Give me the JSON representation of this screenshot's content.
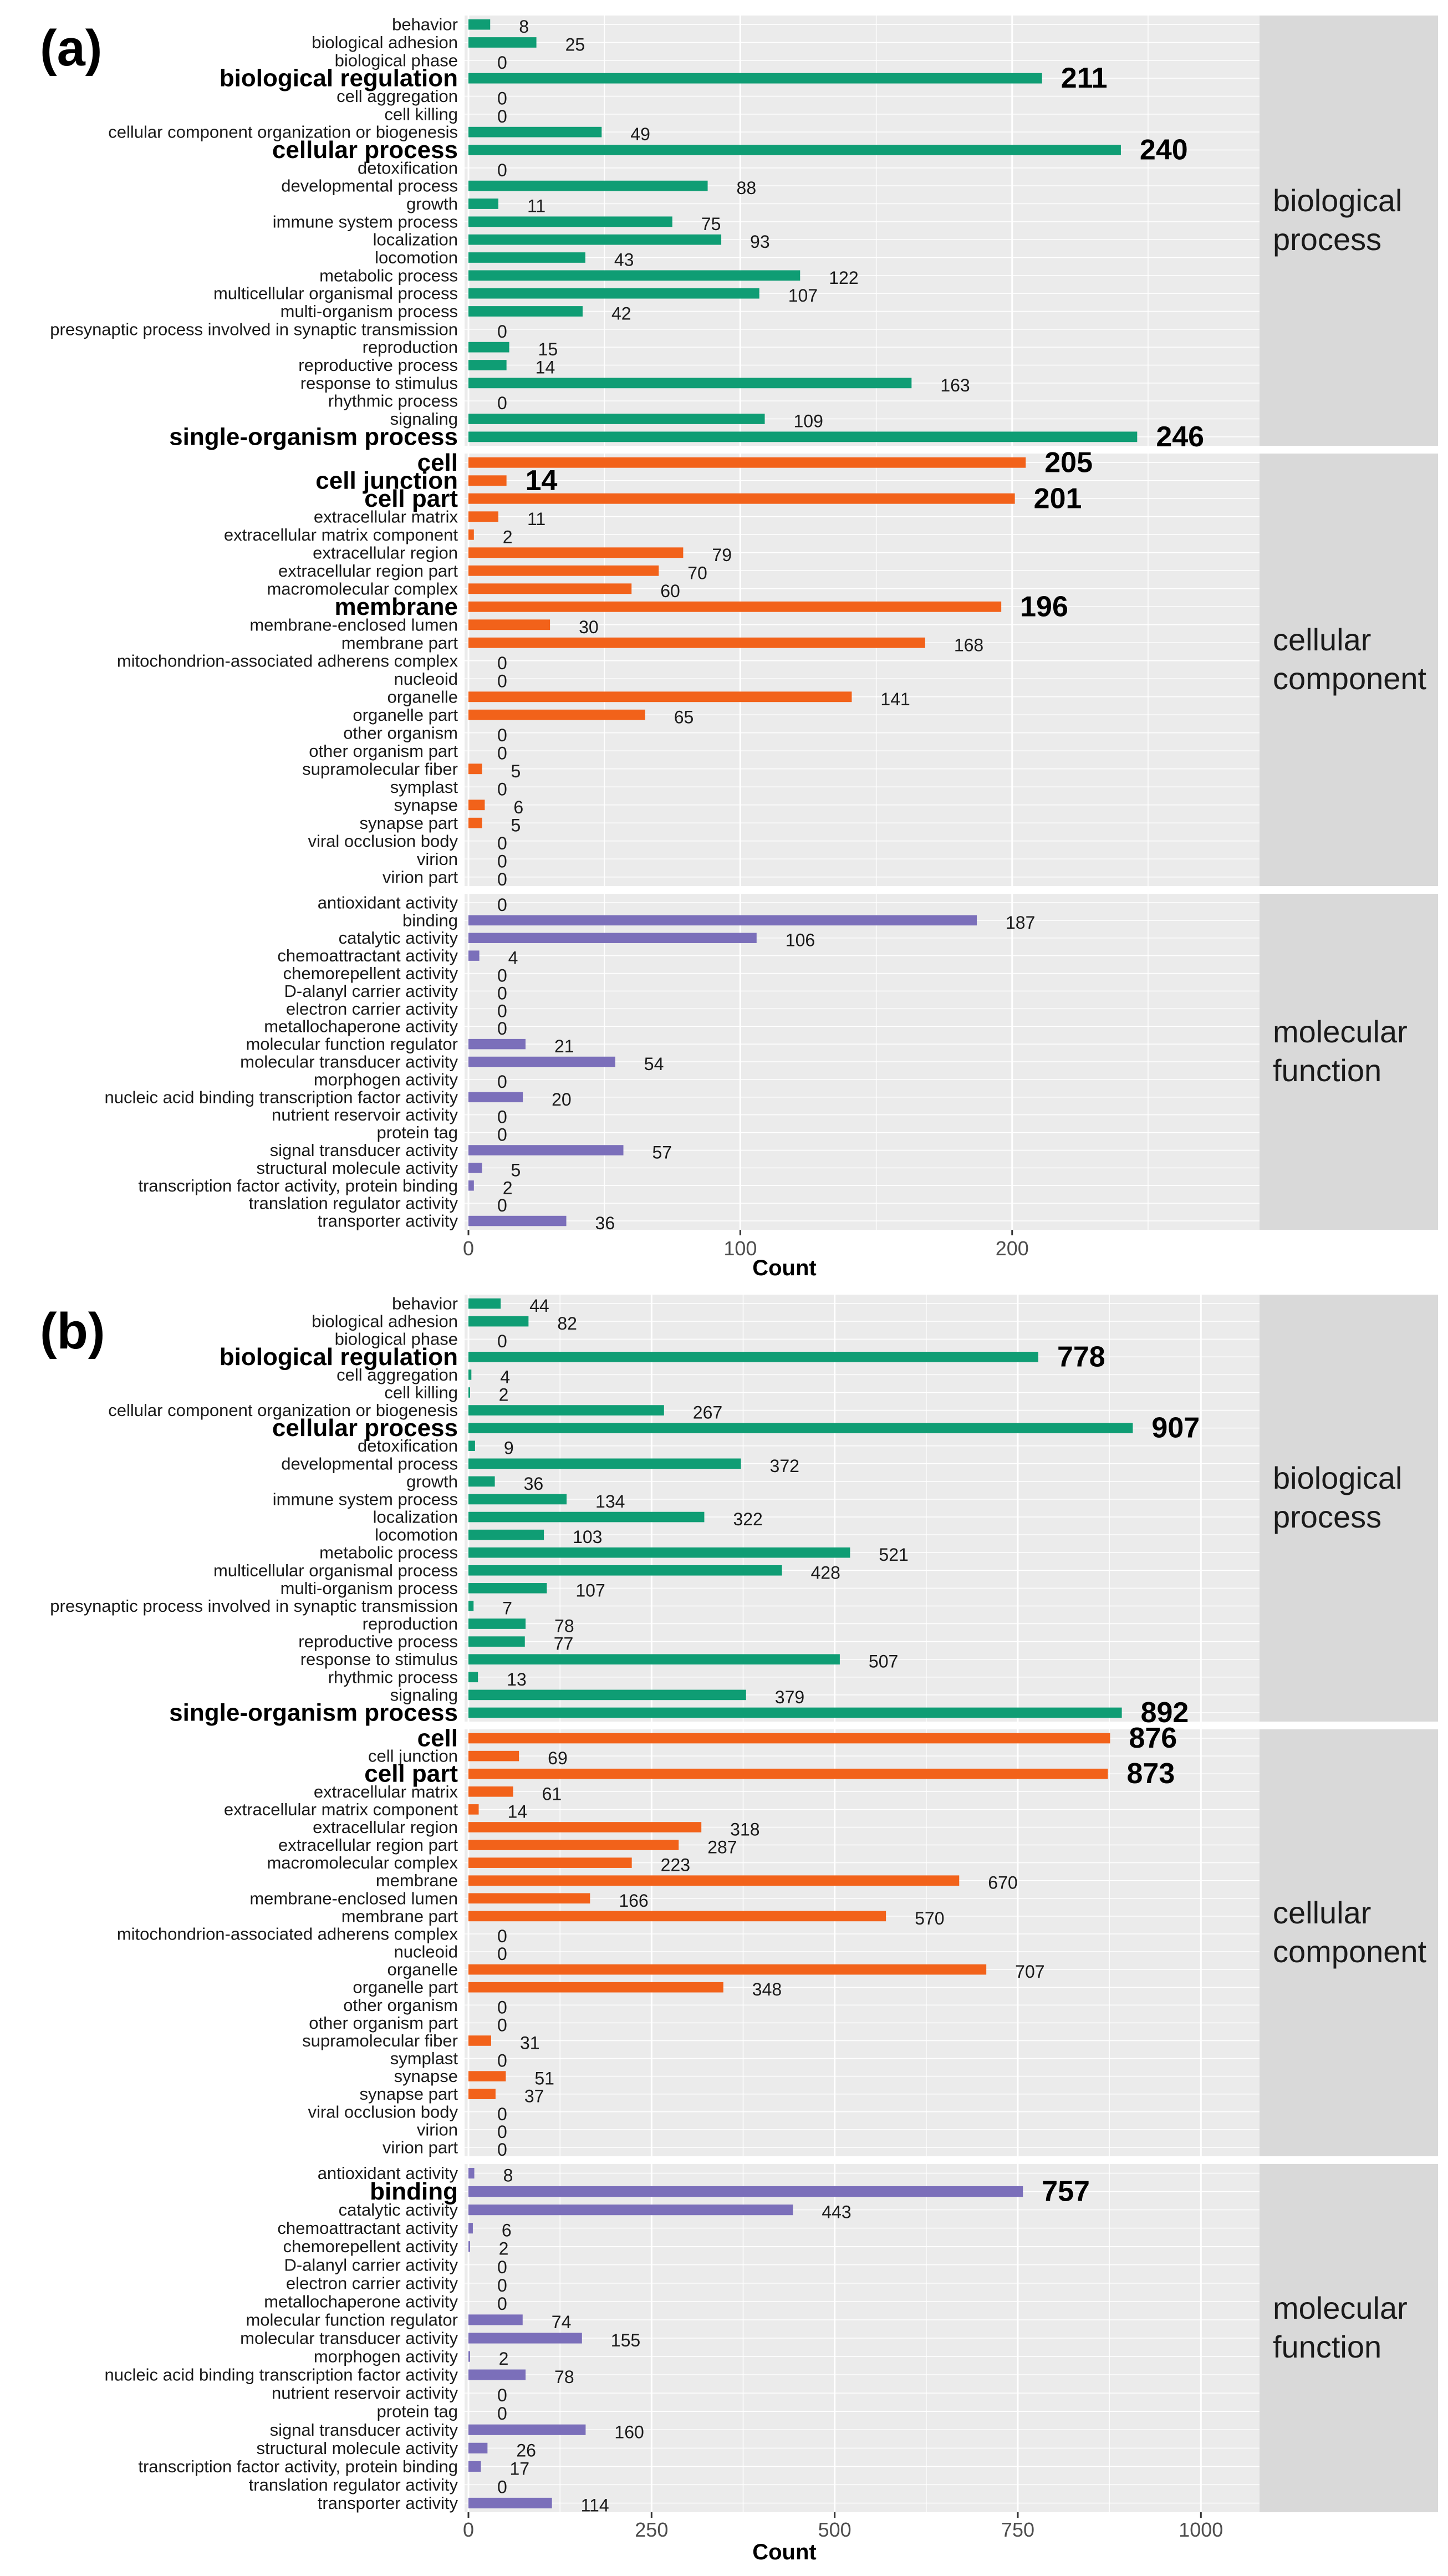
{
  "chart_data": [
    {
      "type": "bar",
      "panel_tag": "(a)",
      "orientation": "horizontal",
      "xlabel": "Count",
      "xlim": [
        0,
        291
      ],
      "xticks": [
        0,
        100,
        200
      ],
      "colors": {
        "biological process": "#0f9d74",
        "cellular component": "#f2621a",
        "molecular function": "#7b6fba"
      },
      "facets": [
        {
          "name": "biological process",
          "label_lines": [
            "biological",
            "process"
          ],
          "items": [
            {
              "label": "behavior",
              "value": 8
            },
            {
              "label": "biological adhesion",
              "value": 25
            },
            {
              "label": "biological phase",
              "value": 0
            },
            {
              "label": "biological regulation",
              "value": 211,
              "bold": true
            },
            {
              "label": "cell aggregation",
              "value": 0
            },
            {
              "label": "cell killing",
              "value": 0
            },
            {
              "label": "cellular component organization or biogenesis",
              "value": 49
            },
            {
              "label": "cellular process",
              "value": 240,
              "bold": true
            },
            {
              "label": "detoxification",
              "value": 0
            },
            {
              "label": "developmental process",
              "value": 88
            },
            {
              "label": "growth",
              "value": 11
            },
            {
              "label": "immune system process",
              "value": 75
            },
            {
              "label": "localization",
              "value": 93
            },
            {
              "label": "locomotion",
              "value": 43
            },
            {
              "label": "metabolic process",
              "value": 122
            },
            {
              "label": "multicellular organismal process",
              "value": 107
            },
            {
              "label": "multi-organism process",
              "value": 42
            },
            {
              "label": "presynaptic process involved in synaptic transmission",
              "value": 0
            },
            {
              "label": "reproduction",
              "value": 15
            },
            {
              "label": "reproductive process",
              "value": 14
            },
            {
              "label": "response to stimulus",
              "value": 163
            },
            {
              "label": "rhythmic process",
              "value": 0
            },
            {
              "label": "signaling",
              "value": 109
            },
            {
              "label": "single-organism process",
              "value": 246,
              "bold": true
            }
          ]
        },
        {
          "name": "cellular component",
          "label_lines": [
            "cellular",
            "component"
          ],
          "items": [
            {
              "label": "cell",
              "value": 205,
              "bold": true
            },
            {
              "label": "cell junction",
              "value": 14,
              "bold": true
            },
            {
              "label": "cell part",
              "value": 201,
              "bold": true
            },
            {
              "label": "extracellular matrix",
              "value": 11
            },
            {
              "label": "extracellular matrix component",
              "value": 2
            },
            {
              "label": "extracellular region",
              "value": 79
            },
            {
              "label": "extracellular region part",
              "value": 70
            },
            {
              "label": "macromolecular complex",
              "value": 60
            },
            {
              "label": "membrane",
              "value": 196,
              "bold": true
            },
            {
              "label": "membrane-enclosed lumen",
              "value": 30
            },
            {
              "label": "membrane part",
              "value": 168
            },
            {
              "label": "mitochondrion-associated adherens complex",
              "value": 0
            },
            {
              "label": "nucleoid",
              "value": 0
            },
            {
              "label": "organelle",
              "value": 141
            },
            {
              "label": "organelle part",
              "value": 65
            },
            {
              "label": "other organism",
              "value": 0
            },
            {
              "label": "other organism part",
              "value": 0
            },
            {
              "label": "supramolecular fiber",
              "value": 5
            },
            {
              "label": "symplast",
              "value": 0
            },
            {
              "label": "synapse",
              "value": 6
            },
            {
              "label": "synapse part",
              "value": 5
            },
            {
              "label": "viral occlusion body",
              "value": 0
            },
            {
              "label": "virion",
              "value": 0
            },
            {
              "label": "virion part",
              "value": 0
            }
          ]
        },
        {
          "name": "molecular function",
          "label_lines": [
            "molecular",
            "function"
          ],
          "items": [
            {
              "label": "antioxidant activity",
              "value": 0
            },
            {
              "label": "binding",
              "value": 187
            },
            {
              "label": "catalytic activity",
              "value": 106
            },
            {
              "label": "chemoattractant activity",
              "value": 4
            },
            {
              "label": "chemorepellent activity",
              "value": 0
            },
            {
              "label": "D-alanyl carrier activity",
              "value": 0
            },
            {
              "label": "electron carrier activity",
              "value": 0
            },
            {
              "label": "metallochaperone activity",
              "value": 0
            },
            {
              "label": "molecular function regulator",
              "value": 21
            },
            {
              "label": "molecular transducer activity",
              "value": 54
            },
            {
              "label": "morphogen activity",
              "value": 0
            },
            {
              "label": "nucleic acid binding transcription factor activity",
              "value": 20
            },
            {
              "label": "nutrient reservoir activity",
              "value": 0
            },
            {
              "label": "protein tag",
              "value": 0
            },
            {
              "label": "signal transducer activity",
              "value": 57
            },
            {
              "label": "structural molecule activity",
              "value": 5
            },
            {
              "label": "transcription factor activity, protein binding",
              "value": 2
            },
            {
              "label": "translation regulator activity",
              "value": 0
            },
            {
              "label": "transporter activity",
              "value": 36
            }
          ]
        }
      ]
    },
    {
      "type": "bar",
      "panel_tag": "(b)",
      "orientation": "horizontal",
      "xlabel": "Count",
      "xlim": [
        0,
        1080
      ],
      "xticks": [
        0,
        250,
        500,
        750,
        1000
      ],
      "colors": {
        "biological process": "#0f9d74",
        "cellular component": "#f2621a",
        "molecular function": "#7b6fba"
      },
      "facets": [
        {
          "name": "biological process",
          "label_lines": [
            "biological",
            "process"
          ],
          "items": [
            {
              "label": "behavior",
              "value": 44
            },
            {
              "label": "biological adhesion",
              "value": 82
            },
            {
              "label": "biological phase",
              "value": 0
            },
            {
              "label": "biological regulation",
              "value": 778,
              "bold": true
            },
            {
              "label": "cell aggregation",
              "value": 4
            },
            {
              "label": "cell killing",
              "value": 2
            },
            {
              "label": "cellular component organization or biogenesis",
              "value": 267
            },
            {
              "label": "cellular process",
              "value": 907,
              "bold": true
            },
            {
              "label": "detoxification",
              "value": 9
            },
            {
              "label": "developmental process",
              "value": 372
            },
            {
              "label": "growth",
              "value": 36
            },
            {
              "label": "immune system process",
              "value": 134
            },
            {
              "label": "localization",
              "value": 322
            },
            {
              "label": "locomotion",
              "value": 103
            },
            {
              "label": "metabolic process",
              "value": 521
            },
            {
              "label": "multicellular organismal process",
              "value": 428
            },
            {
              "label": "multi-organism process",
              "value": 107
            },
            {
              "label": "presynaptic process involved in synaptic transmission",
              "value": 7
            },
            {
              "label": "reproduction",
              "value": 78
            },
            {
              "label": "reproductive process",
              "value": 77
            },
            {
              "label": "response to stimulus",
              "value": 507
            },
            {
              "label": "rhythmic process",
              "value": 13
            },
            {
              "label": "signaling",
              "value": 379
            },
            {
              "label": "single-organism process",
              "value": 892,
              "bold": true
            }
          ]
        },
        {
          "name": "cellular component",
          "label_lines": [
            "cellular",
            "component"
          ],
          "items": [
            {
              "label": "cell",
              "value": 876,
              "bold": true
            },
            {
              "label": "cell junction",
              "value": 69
            },
            {
              "label": "cell part",
              "value": 873,
              "bold": true
            },
            {
              "label": "extracellular matrix",
              "value": 61
            },
            {
              "label": "extracellular matrix component",
              "value": 14
            },
            {
              "label": "extracellular region",
              "value": 318
            },
            {
              "label": "extracellular region part",
              "value": 287
            },
            {
              "label": "macromolecular complex",
              "value": 223
            },
            {
              "label": "membrane",
              "value": 670
            },
            {
              "label": "membrane-enclosed lumen",
              "value": 166
            },
            {
              "label": "membrane part",
              "value": 570
            },
            {
              "label": "mitochondrion-associated adherens complex",
              "value": 0
            },
            {
              "label": "nucleoid",
              "value": 0
            },
            {
              "label": "organelle",
              "value": 707
            },
            {
              "label": "organelle part",
              "value": 348
            },
            {
              "label": "other organism",
              "value": 0
            },
            {
              "label": "other organism part",
              "value": 0
            },
            {
              "label": "supramolecular fiber",
              "value": 31
            },
            {
              "label": "symplast",
              "value": 0
            },
            {
              "label": "synapse",
              "value": 51
            },
            {
              "label": "synapse part",
              "value": 37
            },
            {
              "label": "viral occlusion body",
              "value": 0
            },
            {
              "label": "virion",
              "value": 0
            },
            {
              "label": "virion part",
              "value": 0
            }
          ]
        },
        {
          "name": "molecular function",
          "label_lines": [
            "molecular",
            "function"
          ],
          "items": [
            {
              "label": "antioxidant activity",
              "value": 8
            },
            {
              "label": "binding",
              "value": 757,
              "bold": true
            },
            {
              "label": "catalytic activity",
              "value": 443
            },
            {
              "label": "chemoattractant activity",
              "value": 6
            },
            {
              "label": "chemorepellent activity",
              "value": 2
            },
            {
              "label": "D-alanyl carrier activity",
              "value": 0
            },
            {
              "label": "electron carrier activity",
              "value": 0
            },
            {
              "label": "metallochaperone activity",
              "value": 0
            },
            {
              "label": "molecular function regulator",
              "value": 74
            },
            {
              "label": "molecular transducer activity",
              "value": 155
            },
            {
              "label": "morphogen activity",
              "value": 2
            },
            {
              "label": "nucleic acid binding transcription factor activity",
              "value": 78
            },
            {
              "label": "nutrient reservoir activity",
              "value": 0
            },
            {
              "label": "protein tag",
              "value": 0
            },
            {
              "label": "signal transducer activity",
              "value": 160
            },
            {
              "label": "structural molecule activity",
              "value": 26
            },
            {
              "label": "transcription factor activity, protein binding",
              "value": 17
            },
            {
              "label": "translation regulator activity",
              "value": 0
            },
            {
              "label": "transporter activity",
              "value": 114
            }
          ]
        }
      ]
    }
  ]
}
